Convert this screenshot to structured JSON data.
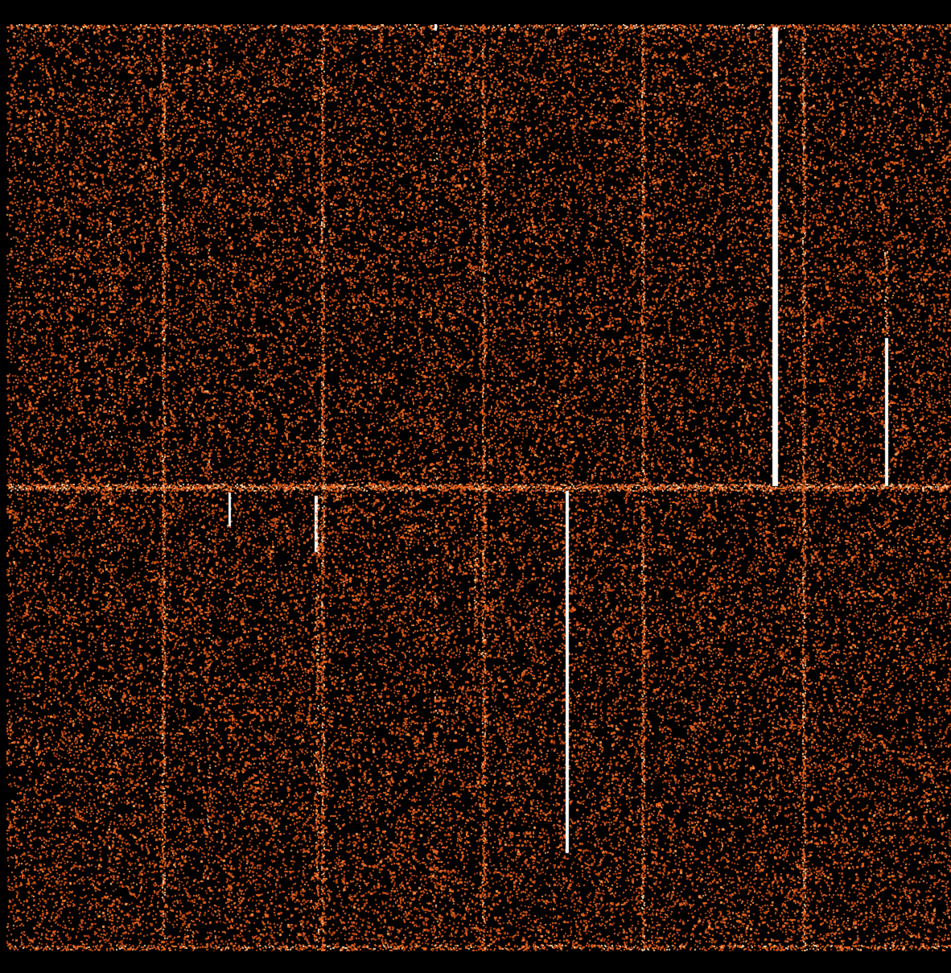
{
  "image": {
    "description_colors": {
      "background": "#000000",
      "noise": "#e8641e",
      "noise_bright": "#ff9a4a",
      "hot": "#ffffff"
    },
    "segment_columns": 6,
    "segment_rows": 2
  }
}
